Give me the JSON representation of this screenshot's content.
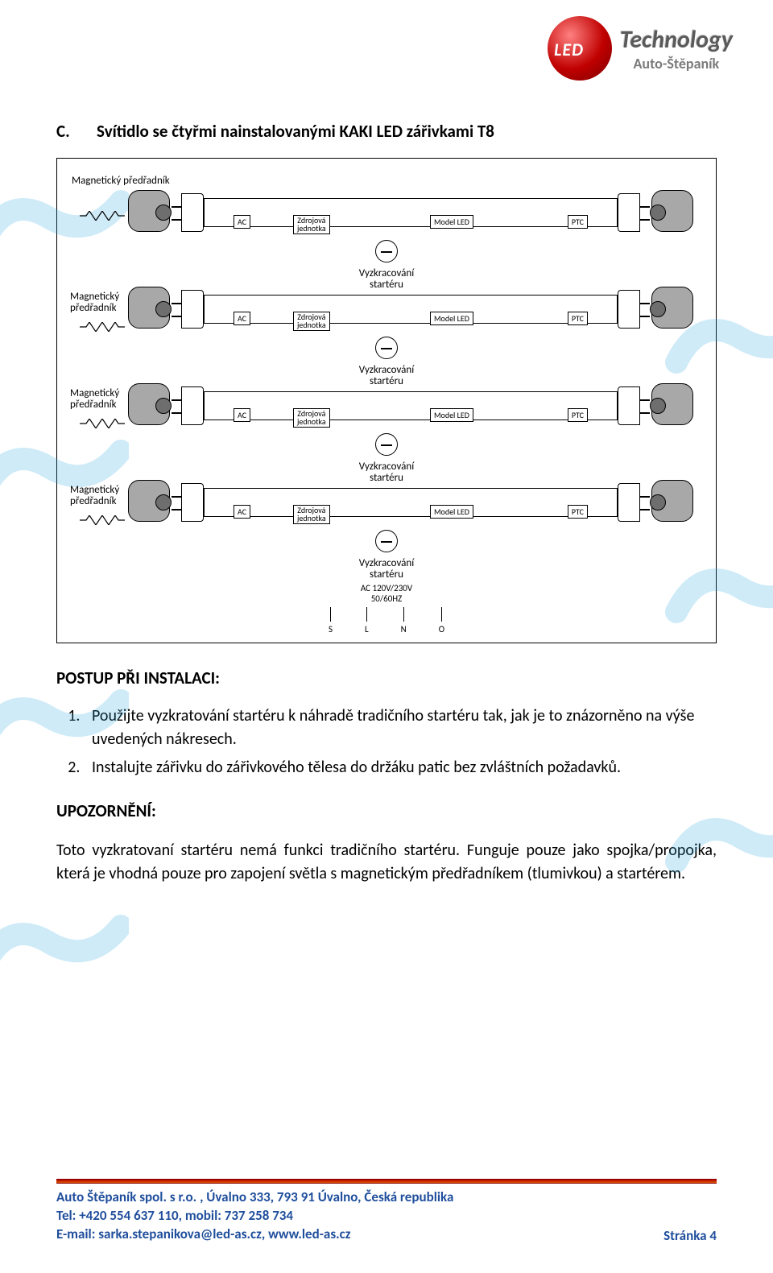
{
  "logo": {
    "ball_text": "LED",
    "tech": "Technology",
    "sub": "Auto-Štěpaník"
  },
  "heading": {
    "letter": "C.",
    "text": "Svítidlo se čtyřmi nainstalovanými KAKI LED zářivkami T8"
  },
  "diagram": {
    "top_label": "Magnetický předřadník",
    "side_label": "Magnetický\npředřadník",
    "ac": "AC",
    "zj": "Zdrojová\njednotka",
    "ml": "Model LED",
    "ptc": "PTC",
    "minus_label": "Vyzkracování\nstartéru",
    "power": "AC 120V/230V\n50/60HZ",
    "s": "S",
    "l": "L",
    "n": "N",
    "o": "O",
    "tube_count": 4
  },
  "install": {
    "title": "POSTUP PŘI INSTALACI:",
    "steps": [
      "Použijte vyzkratování startéru k náhradě tradičního startéru tak, jak je to znázorněno na výše uvedených nákresech.",
      "Instalujte zářivku do zářivkového tělesa do držáku patic bez zvláštních požadavků."
    ]
  },
  "warning": {
    "title": "UPOZORNĚNÍ:",
    "text": "Toto vyzkratovaní startéru nemá funkci tradičního startéru.   Funguje pouze jako spojka/propojka, která je vhodná pouze pro zapojení světla s magnetickým předřadníkem (tlumivkou) a startérem."
  },
  "footer": {
    "line1": "Auto Štěpaník spol. s r.o. , Úvalno 333, 793 91 Úvalno, Česká republika",
    "line2": "Tel: +420 554 637 110, mobil: 737 258 734",
    "line3": "E-mail: sarka.stepanikova@led-as.cz, www.led-as.cz",
    "page": "Stránka 4"
  },
  "colors": {
    "text": "#000000",
    "blue": "#1f4e9c",
    "bar_top": "#b00000",
    "bar_bottom": "#e05a00",
    "socket_fill": "#a8a8a8",
    "watermark": "#2aa7e0"
  }
}
